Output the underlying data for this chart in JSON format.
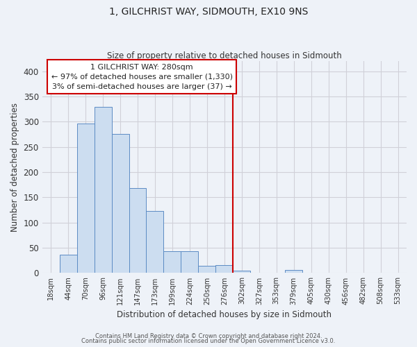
{
  "title": "1, GILCHRIST WAY, SIDMOUTH, EX10 9NS",
  "subtitle": "Size of property relative to detached houses in Sidmouth",
  "xlabel": "Distribution of detached houses by size in Sidmouth",
  "ylabel": "Number of detached properties",
  "bar_labels": [
    "18sqm",
    "44sqm",
    "70sqm",
    "96sqm",
    "121sqm",
    "147sqm",
    "173sqm",
    "199sqm",
    "224sqm",
    "250sqm",
    "276sqm",
    "302sqm",
    "327sqm",
    "353sqm",
    "379sqm",
    "405sqm",
    "430sqm",
    "456sqm",
    "482sqm",
    "508sqm",
    "533sqm"
  ],
  "bar_heights": [
    0,
    37,
    296,
    329,
    276,
    168,
    123,
    43,
    43,
    15,
    16,
    5,
    0,
    0,
    6,
    0,
    0,
    0,
    0,
    1,
    0
  ],
  "bar_color": "#ccddf0",
  "bar_edge_color": "#5b8bc4",
  "vline_x": 10.5,
  "vline_color": "#cc0000",
  "annotation_title": "1 GILCHRIST WAY: 280sqm",
  "annotation_line1": "← 97% of detached houses are smaller (1,330)",
  "annotation_line2": "3% of semi-detached houses are larger (37) →",
  "annotation_box_color": "#ffffff",
  "annotation_box_edge": "#cc0000",
  "grid_color": "#d0d0d8",
  "background_color": "#eef2f8",
  "footer1": "Contains HM Land Registry data © Crown copyright and database right 2024.",
  "footer2": "Contains public sector information licensed under the Open Government Licence v3.0.",
  "ylim": [
    0,
    420
  ],
  "yticks": [
    0,
    50,
    100,
    150,
    200,
    250,
    300,
    350,
    400
  ]
}
